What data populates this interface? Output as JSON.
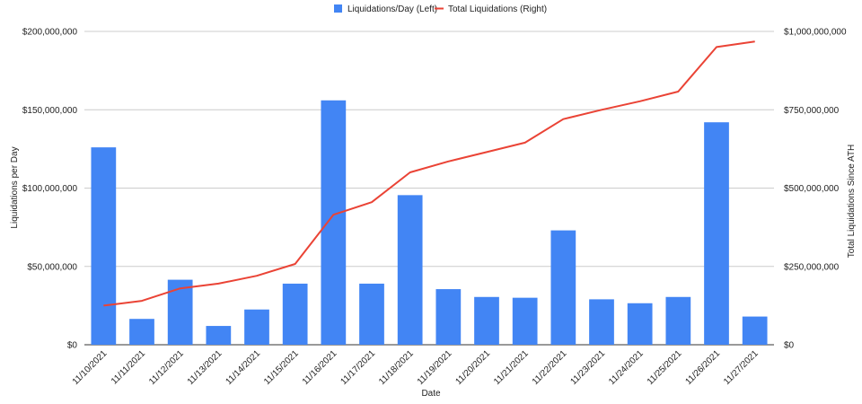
{
  "chart_data": {
    "type": "bar",
    "categories": [
      "11/10/2021",
      "11/11/2021",
      "11/12/2021",
      "11/13/2021",
      "11/14/2021",
      "11/15/2021",
      "11/16/2021",
      "11/17/2021",
      "11/18/2021",
      "11/19/2021",
      "11/20/2021",
      "11/21/2021",
      "11/22/2021",
      "11/23/2021",
      "11/24/2021",
      "11/25/2021",
      "11/26/2021",
      "11/27/2021"
    ],
    "series": [
      {
        "name": "Liquidations/Day (Left)",
        "type": "bar",
        "axis": "left",
        "color": "#4285f4",
        "values": [
          126000000,
          16500000,
          41500000,
          12000000,
          22500000,
          39000000,
          156000000,
          39000000,
          95500000,
          35500000,
          30500000,
          30000000,
          73000000,
          29000000,
          26500000,
          30500000,
          142000000,
          18000000
        ]
      },
      {
        "name": "Total Liquidations (Right)",
        "type": "line",
        "axis": "right",
        "color": "#ea4335",
        "values": [
          125000000,
          140000000,
          180000000,
          195000000,
          220000000,
          258000000,
          415000000,
          455000000,
          550000000,
          585000000,
          615000000,
          645000000,
          720000000,
          750000000,
          777000000,
          808000000,
          950000000,
          968000000
        ]
      }
    ],
    "xlabel": "Date",
    "ylabel": "Liquidations per Day",
    "y2label": "Total Liquidations Since ATH",
    "ylim": [
      0,
      200000000
    ],
    "y2lim": [
      0,
      1000000000
    ],
    "yticks": [
      0,
      50000000,
      100000000,
      150000000,
      200000000
    ],
    "yticklabels": [
      "$0",
      "$50,000,000",
      "$100,000,000",
      "$150,000,000",
      "$200,000,000"
    ],
    "y2ticks": [
      0,
      250000000,
      500000000,
      750000000,
      1000000000
    ],
    "y2ticklabels": [
      "$0",
      "$250,000,000",
      "$500,000,000",
      "$750,000,000",
      "$1,000,000,000"
    ],
    "grid": true,
    "legend_position": "top-center"
  }
}
